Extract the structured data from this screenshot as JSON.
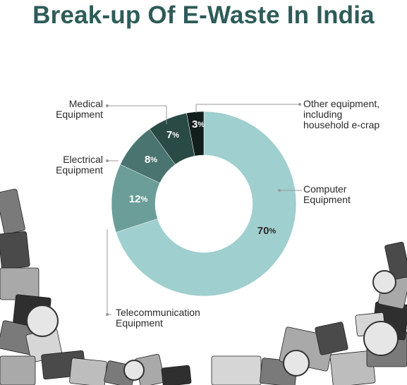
{
  "chart_data": {
    "type": "pie",
    "title": "Break-up Of E-Waste In India",
    "slices": [
      {
        "name": "Computer Equipment",
        "lines": [
          "Computer",
          "Equipment"
        ],
        "value": 70,
        "color": "#9fcfce",
        "text_color": "#2a2a2a"
      },
      {
        "name": "Telecommunication Equipment",
        "lines": [
          "Telecommunication",
          "Equipment"
        ],
        "value": 12,
        "color": "#6b9e99",
        "text_color": "#ffffff"
      },
      {
        "name": "Electrical Equipment",
        "lines": [
          "Electrical",
          "Equipment"
        ],
        "value": 8,
        "color": "#4a7470",
        "text_color": "#ffffff"
      },
      {
        "name": "Medical Equipment",
        "lines": [
          "Medical",
          "Equipment"
        ],
        "value": 7,
        "color": "#2a4a46",
        "text_color": "#ffffff"
      },
      {
        "name": "Other equipment, including household e-crap",
        "lines": [
          "Other equipment,",
          "including",
          "household e-crap"
        ],
        "value": 3,
        "color": "#121e1c",
        "text_color": "#ffffff"
      }
    ],
    "value_suffix": "%"
  }
}
